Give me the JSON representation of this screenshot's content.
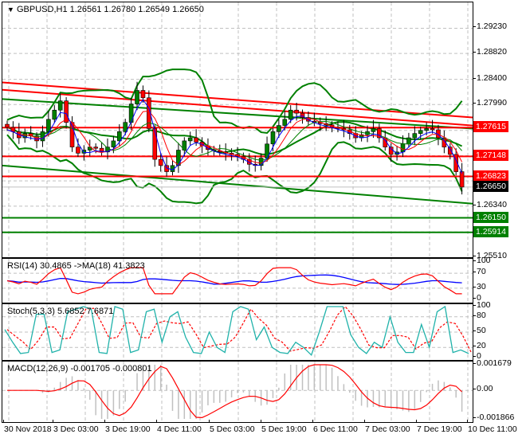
{
  "header": {
    "symbol": "GBPUSD,H1",
    "ohlc": "1.26561 1.26780 1.26549 1.26650",
    "title": "GBPUSD,H1  1.26561 1.26780 1.26549 1.26650",
    "collapse_icon": "triangle-down-icon"
  },
  "colors": {
    "resistance": "#ff0000",
    "support": "#008000",
    "bollinger": "#008000",
    "candle_bull": "#008000",
    "candle_bear": "#ff0000",
    "ma_fast": "#0000ff",
    "ma_mid": "#ff0000",
    "ma_slow": "#008000",
    "rsi": "#ff0000",
    "rsi_ma": "#0000ff",
    "stoch_main": "#20b2aa",
    "stoch_signal": "#ff0000",
    "macd_hist": "#c0c0c0",
    "macd_signal": "#ff0000",
    "grid": "#c0c0c0",
    "current_price_bg": "#000000"
  },
  "price_axis": {
    "ticks": [
      "1.29230",
      "1.28820",
      "1.28400",
      "1.27990",
      "1.26340",
      "1.25510"
    ],
    "levels": [
      {
        "value": "1.27615",
        "type": "resistance"
      },
      {
        "value": "1.27148",
        "type": "resistance"
      },
      {
        "value": "1.26823",
        "type": "resistance"
      },
      {
        "value": "1.26150",
        "type": "support"
      },
      {
        "value": "1.25914",
        "type": "support"
      }
    ],
    "current_price": "1.26650"
  },
  "rsi": {
    "title": "RSI(14) 30.4865  ->MA(18) 41.3823",
    "ticks": [
      "100",
      "70",
      "30",
      "0"
    ]
  },
  "stoch": {
    "title": "Stoch(5,3,3) 5.6852 7.6871",
    "ticks": [
      "100",
      "80",
      "50",
      "20",
      "0"
    ]
  },
  "macd": {
    "title": "MACD(12,26,9) -0.001705 -0.000801",
    "ticks": [
      "0.001679",
      "0.00",
      "-0.001866"
    ]
  },
  "time_axis": {
    "labels": [
      "30 Nov 2018",
      "3 Dec 03:00",
      "3 Dec 19:00",
      "4 Dec 11:00",
      "5 Dec 03:00",
      "5 Dec 19:00",
      "6 Dec 11:00",
      "7 Dec 03:00",
      "7 Dec 19:00",
      "10 Dec 11:00"
    ]
  },
  "chart_data": [
    {
      "type": "candlestick",
      "title": "GBPUSD,H1",
      "ylim": [
        1.2551,
        1.2965
      ],
      "x": [
        "30 Nov 2018",
        "3 Dec 03:00",
        "3 Dec 19:00",
        "4 Dec 11:00",
        "5 Dec 03:00",
        "5 Dec 19:00",
        "6 Dec 11:00",
        "7 Dec 03:00",
        "7 Dec 19:00",
        "10 Dec 11:00"
      ],
      "last_candle": {
        "open": 1.26561,
        "high": 1.2678,
        "low": 1.26549,
        "close": 1.2665
      },
      "close_path": [
        1.2762,
        1.2755,
        1.2745,
        1.2752,
        1.2748,
        1.274,
        1.2755,
        1.2775,
        1.279,
        1.2805,
        1.277,
        1.273,
        1.272,
        1.2725,
        1.273,
        1.2728,
        1.2722,
        1.273,
        1.274,
        1.2755,
        1.277,
        1.28,
        1.2822,
        1.281,
        1.276,
        1.271,
        1.27,
        1.269,
        1.27,
        1.2725,
        1.274,
        1.2745,
        1.2738,
        1.2732,
        1.2726,
        1.2724,
        1.2722,
        1.272,
        1.2718,
        1.2715,
        1.271,
        1.2702,
        1.27,
        1.2712,
        1.2735,
        1.2755,
        1.2765,
        1.2775,
        1.279,
        1.2785,
        1.2778,
        1.2772,
        1.277,
        1.2768,
        1.2766,
        1.2762,
        1.276,
        1.2758,
        1.2752,
        1.2745,
        1.275,
        1.2755,
        1.276,
        1.2745,
        1.273,
        1.2718,
        1.2722,
        1.2735,
        1.2745,
        1.2752,
        1.2757,
        1.276,
        1.2758,
        1.2745,
        1.273,
        1.2718,
        1.269,
        1.2665
      ],
      "horizontal_levels": {
        "resistance": [
          1.27615,
          1.27148,
          1.26823
        ],
        "support": [
          1.2615,
          1.25914
        ]
      },
      "trendlines": [
        {
          "color": "red",
          "from": 1.2835,
          "to": 1.2778
        },
        {
          "color": "red",
          "from": 1.2823,
          "to": 1.2765
        },
        {
          "color": "green",
          "from": 1.2808,
          "to": 1.276
        },
        {
          "color": "green",
          "from": 1.27,
          "to": 1.2638
        }
      ],
      "indicators": [
        "Bollinger Bands",
        "Moving Averages (3)"
      ]
    },
    {
      "type": "line",
      "title": "RSI(14) 30.4865 ->MA(18) 41.3823",
      "ylim": [
        0,
        100
      ],
      "series": [
        {
          "name": "RSI(14)",
          "last": 30.4865
        },
        {
          "name": "MA(18)",
          "last": 41.3823
        }
      ],
      "levels": [
        30,
        70
      ]
    },
    {
      "type": "line",
      "title": "Stoch(5,3,3) 5.6852 7.6871",
      "ylim": [
        0,
        100
      ],
      "series": [
        {
          "name": "%K",
          "last": 5.6852,
          "values": [
            55,
            30,
            8,
            10,
            85,
            85,
            10,
            15,
            90,
            95,
            100,
            95,
            10,
            8,
            100,
            95,
            10,
            15,
            90,
            95,
            30,
            80,
            90,
            40,
            10,
            8,
            50,
            20,
            10,
            90,
            100,
            95,
            35,
            60,
            20,
            10,
            8,
            30,
            20,
            5,
            50,
            100,
            100,
            100,
            45,
            20,
            8,
            30,
            20,
            80,
            30,
            10,
            10,
            65,
            20,
            90,
            100,
            10,
            15,
            8
          ]
        },
        {
          "name": "%D",
          "last": 7.6871
        }
      ],
      "levels": [
        20,
        80
      ]
    },
    {
      "type": "bar",
      "title": "MACD(12,26,9) -0.001705 -0.000801",
      "ylim": [
        -0.001866,
        0.001679
      ],
      "series": [
        {
          "name": "MACD histogram",
          "last": -0.001705
        },
        {
          "name": "Signal",
          "last": -0.000801
        }
      ]
    }
  ]
}
